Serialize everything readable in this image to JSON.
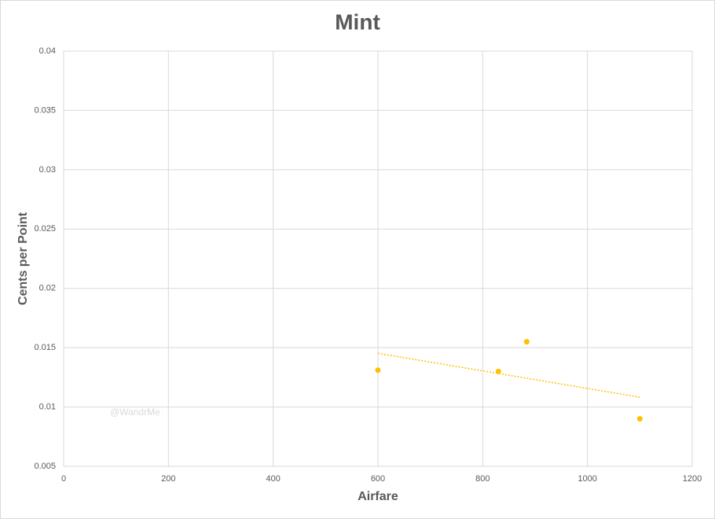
{
  "chart_data": {
    "type": "scatter",
    "title": "Mint",
    "x_label": "Airfare",
    "y_label": "Cents per Point",
    "watermark": "@WandrMe",
    "series": [
      {
        "name": "Mint",
        "color": "#ffc000",
        "x": [
          600,
          830,
          884,
          1100
        ],
        "values": [
          0.0131,
          0.013,
          0.0155,
          0.009
        ]
      }
    ],
    "trendline": "linear",
    "xlim": [
      0,
      1200
    ],
    "xticks": [
      0,
      200,
      400,
      600,
      800,
      1000,
      1200
    ],
    "ylim": [
      0.005,
      0.04
    ],
    "yticks": [
      0.005,
      0.01,
      0.015,
      0.02,
      0.025,
      0.03,
      0.035,
      0.04
    ],
    "grid": true
  }
}
